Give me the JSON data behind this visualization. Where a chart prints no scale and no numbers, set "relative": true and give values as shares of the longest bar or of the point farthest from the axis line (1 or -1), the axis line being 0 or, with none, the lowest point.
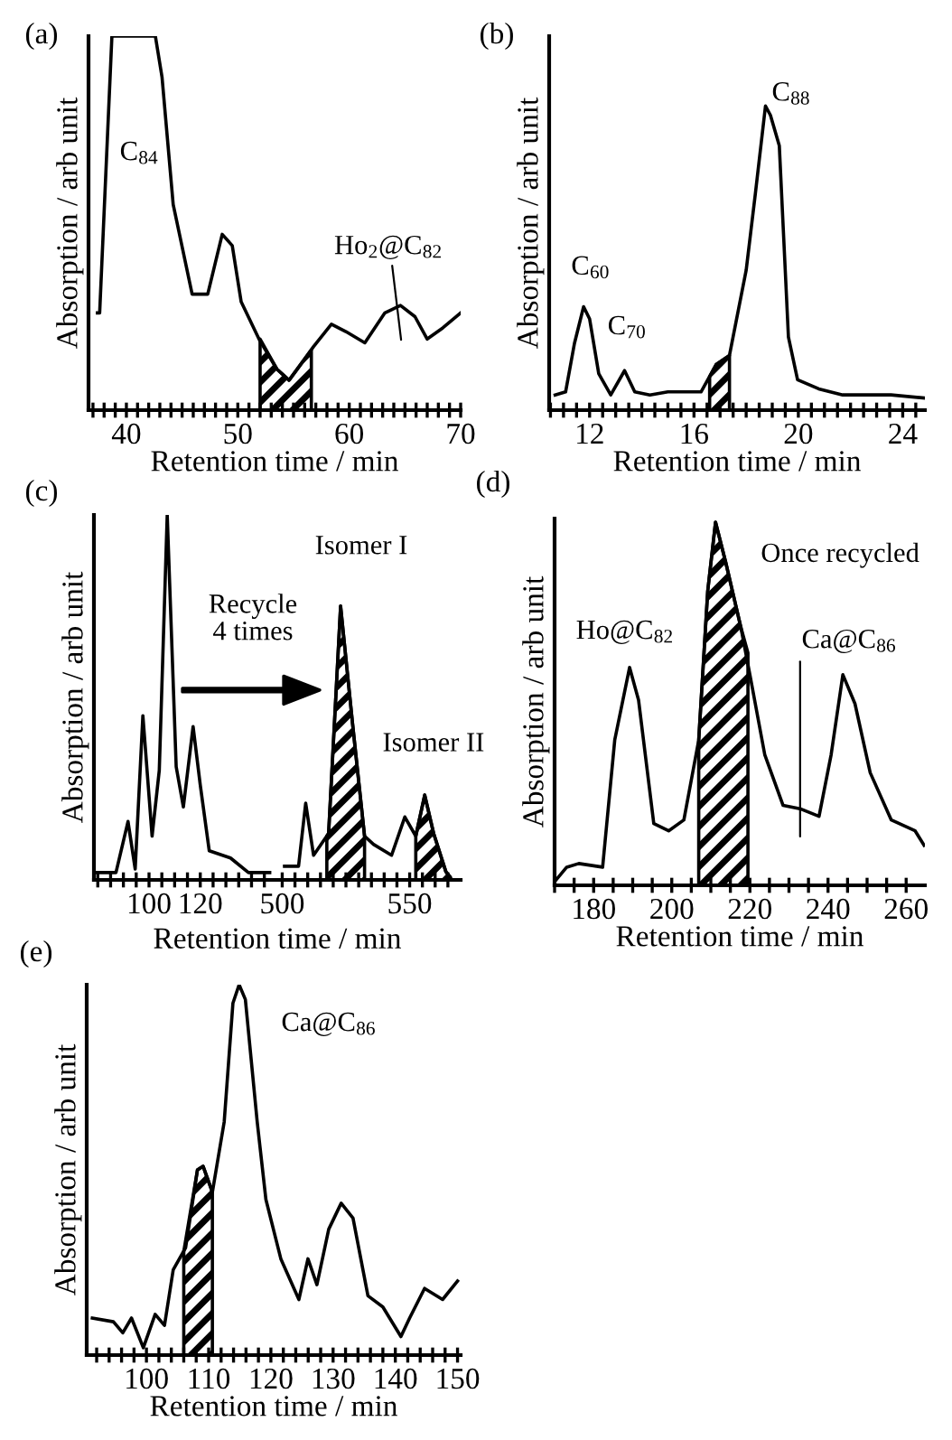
{
  "chart_data": [
    {
      "type": "line",
      "relative": true,
      "title": "(a)",
      "xlabel": "Retention time / min",
      "ylabel": "Absorption / arb unit",
      "x": [
        37.4,
        37.6,
        38.7,
        42.6,
        43.2,
        44.2,
        45.9,
        47.3,
        48.6,
        49.5,
        50.3,
        51.9,
        53.5,
        54.6,
        56.8,
        58.4,
        59.7,
        61.4,
        63.2,
        64.6,
        65.9,
        67.0,
        68.4,
        70
      ],
      "series": [
        {
          "color": "#000000",
          "values": [
            0.26,
            0.26,
            1,
            1,
            0.89,
            0.55,
            0.31,
            0.31,
            0.47,
            0.44,
            0.29,
            0.19,
            0.11,
            0.08,
            0.17,
            0.23,
            0.21,
            0.18,
            0.26,
            0.28,
            0.25,
            0.19,
            0.22,
            0.26
          ]
        },
        {
          "type": "area",
          "color": "#000000",
          "x": [
            52.0,
            53.5,
            54.6,
            56.6
          ],
          "values": [
            0.19,
            0.11,
            0.08,
            0.16
          ]
        }
      ],
      "xlim": [
        36.6,
        70
      ],
      "xticks": [
        {
          "value": 37,
          "label": null
        },
        {
          "value": 38,
          "label": null
        },
        {
          "value": 39,
          "label": null
        },
        40,
        {
          "value": 41,
          "label": null
        },
        {
          "value": 42,
          "label": null
        },
        {
          "value": 43,
          "label": null
        },
        {
          "value": 44,
          "label": null
        },
        {
          "value": 45,
          "label": null
        },
        {
          "value": 46,
          "label": null
        },
        {
          "value": 47,
          "label": null
        },
        {
          "value": 48,
          "label": null
        },
        {
          "value": 49,
          "label": null
        },
        50,
        {
          "value": 51,
          "label": null
        },
        {
          "value": 52,
          "label": null
        },
        {
          "value": 53,
          "label": null
        },
        {
          "value": 54,
          "label": null
        },
        {
          "value": 55,
          "label": null
        },
        {
          "value": 56,
          "label": null
        },
        {
          "value": 57,
          "label": null
        },
        {
          "value": 58,
          "label": null
        },
        {
          "value": 59,
          "label": null
        },
        60,
        {
          "value": 61,
          "label": null
        },
        {
          "value": 62,
          "label": null
        },
        {
          "value": 63,
          "label": null
        },
        {
          "value": 64,
          "label": null
        },
        {
          "value": 65,
          "label": null
        },
        {
          "value": 66,
          "label": null
        },
        {
          "value": 67,
          "label": null
        },
        {
          "value": 68,
          "label": null
        },
        {
          "value": 69,
          "label": null
        },
        70
      ],
      "annotations": [
        "C$_{84}$",
        "Ho$_{2}$@C$_{82}$"
      ]
    },
    {
      "type": "line",
      "relative": true,
      "title": "(b)",
      "xlabel": "Retention time / min",
      "ylabel": "Absorption / arb unit",
      "x": [
        10.68,
        11.08,
        11.42,
        11.77,
        12.0,
        12.35,
        12.81,
        13.34,
        13.73,
        14.31,
        15.0,
        15.7,
        16.27,
        16.85,
        17.36,
        18.0,
        18.35,
        18.74,
        18.93,
        19.27,
        19.62,
        19.97,
        20.78,
        21.7,
        23.55,
        24.82
      ],
      "series": [
        {
          "color": "#000000",
          "values": [
            0.05,
            0.06,
            0.22,
            0.34,
            0.3,
            0.12,
            0.05,
            0.13,
            0.06,
            0.05,
            0.06,
            0.06,
            0.06,
            0.15,
            0.18,
            0.46,
            0.71,
            1.0,
            0.97,
            0.87,
            0.24,
            0.1,
            0.07,
            0.05,
            0.05,
            0.04
          ]
        },
        {
          "type": "area",
          "color": "#000000",
          "x": [
            16.6,
            16.85,
            17.36
          ],
          "values": [
            0.11,
            0.15,
            0.18
          ]
        }
      ],
      "xlim": [
        10.45,
        24.85
      ],
      "xticks": [
        {
          "value": 10.5,
          "label": null
        },
        {
          "value": 11,
          "label": null
        },
        {
          "value": 11.5,
          "label": null
        },
        12,
        {
          "value": 12.5,
          "label": null
        },
        {
          "value": 13,
          "label": null
        },
        {
          "value": 13.5,
          "label": null
        },
        {
          "value": 14,
          "label": null
        },
        {
          "value": 14.5,
          "label": null
        },
        {
          "value": 15,
          "label": null
        },
        {
          "value": 15.5,
          "label": null
        },
        16,
        {
          "value": 16.5,
          "label": null
        },
        {
          "value": 17,
          "label": null
        },
        {
          "value": 17.5,
          "label": null
        },
        {
          "value": 18,
          "label": null
        },
        {
          "value": 18.5,
          "label": null
        },
        {
          "value": 19,
          "label": null
        },
        {
          "value": 19.5,
          "label": null
        },
        20,
        {
          "value": 20.5,
          "label": null
        },
        {
          "value": 21,
          "label": null
        },
        {
          "value": 21.5,
          "label": null
        },
        {
          "value": 22,
          "label": null
        },
        {
          "value": 22.5,
          "label": null
        },
        {
          "value": 23,
          "label": null
        },
        {
          "value": 23.5,
          "label": null
        },
        24,
        {
          "value": 24.5,
          "label": null
        }
      ],
      "annotations": [
        "C$_{60}$",
        "C$_{70}$",
        "C$_{88}$"
      ]
    },
    {
      "type": "line",
      "relative": true,
      "title": "(c)",
      "xlabel": "Retention time / min",
      "ylabel": "Absorption / arb unit",
      "x": [
        78.8,
        87.1,
        91.8,
        94.6,
        97.6,
        101.2,
        104.0,
        107.1,
        110.6,
        113.4,
        117.2,
        120.0,
        123.5,
        131.8,
        138.8,
        147.1
      ],
      "series": [
        {
          "color": "#000000",
          "values": [
            0.02,
            0.02,
            0.16,
            0.03,
            0.45,
            0.12,
            0.3,
            1.0,
            0.31,
            0.2,
            0.42,
            0.26,
            0.08,
            0.06,
            0.02,
            0.02
          ]
        }
      ],
      "xlim": [
        78.5,
        149
      ],
      "xticks": [
        {
          "value": 80,
          "label": null
        },
        {
          "value": 85,
          "label": null
        },
        {
          "value": 90,
          "label": null
        },
        {
          "value": 95,
          "label": null
        },
        100,
        {
          "value": 105,
          "label": null
        },
        {
          "value": 110,
          "label": null
        },
        {
          "value": 115,
          "label": null
        },
        120,
        {
          "value": 125,
          "label": null
        },
        {
          "value": 130,
          "label": null
        },
        {
          "value": 135,
          "label": null
        },
        {
          "value": 140,
          "label": null
        },
        {
          "value": 145,
          "label": null
        }
      ],
      "annotations": [
        "Recycle\n4 times"
      ]
    },
    {
      "type": "line",
      "relative": true,
      "x": [
        500.9,
        506.4,
        509.2,
        512.3,
        518.2,
        522.9,
        527.6,
        532.3,
        535.8,
        542.9,
        548.1,
        552.4,
        555.9,
        559.4,
        564.2,
        566.5
      ],
      "series": [
        {
          "color": "#000000",
          "values": [
            0.05,
            0.05,
            0.28,
            0.09,
            0.17,
            1.0,
            0.57,
            0.16,
            0.13,
            0.09,
            0.23,
            0.16,
            0.31,
            0.17,
            0.03,
            0
          ]
        },
        {
          "type": "area",
          "color": "#000000",
          "x": [
            517.5,
            518.2,
            522.9,
            527.6,
            532.3
          ],
          "values": [
            0.16,
            0.17,
            1.0,
            0.57,
            0.16
          ]
        },
        {
          "type": "area",
          "color": "#000000",
          "x": [
            552.4,
            555.9,
            559.4,
            564.2,
            566.0
          ],
          "values": [
            0.16,
            0.31,
            0.17,
            0.03,
            0.01
          ]
        }
      ],
      "xlim": [
        497,
        570
      ],
      "xticks": [
        500,
        {
          "value": 505,
          "label": null
        },
        {
          "value": 510,
          "label": null
        },
        {
          "value": 515,
          "label": null
        },
        {
          "value": 520,
          "label": null
        },
        {
          "value": 525,
          "label": null
        },
        {
          "value": 530,
          "label": null
        },
        {
          "value": 535,
          "label": null
        },
        {
          "value": 540,
          "label": null
        },
        {
          "value": 545,
          "label": null
        },
        550,
        {
          "value": 555,
          "label": null
        },
        {
          "value": 560,
          "label": null
        },
        {
          "value": 565,
          "label": null
        }
      ],
      "annotations": [
        "Isomer I",
        "Isomer II"
      ]
    },
    {
      "type": "line",
      "relative": true,
      "title": "(d)",
      "xlabel": "Retention time / min",
      "ylabel": "Absorption / arb unit",
      "x": [
        170,
        173.1,
        176.2,
        182.3,
        185.4,
        189.2,
        191.5,
        195.4,
        199.2,
        203.1,
        206.9,
        209.2,
        211.2,
        213.8,
        217.7,
        220.0,
        223.8,
        228.5,
        233.1,
        237.7,
        240.8,
        243.8,
        246.9,
        250.8,
        256.2,
        262.3,
        264.6
      ],
      "series": [
        {
          "color": "#000000",
          "values": [
            0.01,
            0.05,
            0.06,
            0.05,
            0.4,
            0.6,
            0.51,
            0.17,
            0.15,
            0.18,
            0.4,
            0.81,
            1.0,
            0.89,
            0.71,
            0.58,
            0.36,
            0.22,
            0.21,
            0.19,
            0.36,
            0.58,
            0.5,
            0.31,
            0.18,
            0.15,
            0.11
          ]
        },
        {
          "type": "area",
          "color": "#000000",
          "x": [
            206.9,
            209.2,
            211.2,
            213.8,
            217.7,
            219.5
          ],
          "values": [
            0.4,
            0.81,
            1.0,
            0.89,
            0.71,
            0.64
          ]
        }
      ],
      "xlim": [
        170,
        264.8
      ],
      "xticks": [
        {
          "value": 170,
          "label": null
        },
        {
          "value": 175,
          "label": null
        },
        180,
        {
          "value": 185,
          "label": null
        },
        {
          "value": 190,
          "label": null
        },
        {
          "value": 195,
          "label": null
        },
        200,
        {
          "value": 205,
          "label": null
        },
        {
          "value": 210,
          "label": null
        },
        {
          "value": 215,
          "label": null
        },
        220,
        {
          "value": 225,
          "label": null
        },
        {
          "value": 230,
          "label": null
        },
        {
          "value": 235,
          "label": null
        },
        240,
        {
          "value": 245,
          "label": null
        },
        {
          "value": 250,
          "label": null
        },
        {
          "value": 255,
          "label": null
        },
        260
      ],
      "annotations": [
        "Ho@C$_{82}$",
        "Once recycled",
        "Ca@C$_{86}$"
      ]
    },
    {
      "type": "line",
      "relative": true,
      "title": "(e)",
      "xlabel": "Retention time / min",
      "ylabel": "Absorption / arb unit",
      "x": [
        91.3,
        94.7,
        96.2,
        97.6,
        99.5,
        101.4,
        102.9,
        104.3,
        106.3,
        108.2,
        109.1,
        110.6,
        112.5,
        113.9,
        114.9,
        115.9,
        117.8,
        119.2,
        121.6,
        124.5,
        125.96,
        127.4,
        129.3,
        131.3,
        133.2,
        135.6,
        138.0,
        140.9,
        142.3,
        144.7,
        147.6,
        150
      ],
      "series": [
        {
          "color": "#000000",
          "values": [
            0.1,
            0.09,
            0.06,
            0.1,
            0.02,
            0.11,
            0.08,
            0.23,
            0.29,
            0.5,
            0.51,
            0.44,
            0.63,
            0.95,
            1.0,
            0.96,
            0.63,
            0.42,
            0.26,
            0.15,
            0.26,
            0.19,
            0.34,
            0.41,
            0.37,
            0.16,
            0.13,
            0.05,
            0.1,
            0.18,
            0.15,
            0.2
          ]
        },
        {
          "type": "area",
          "color": "#000000",
          "x": [
            106.0,
            108.2,
            109.1,
            110.6
          ],
          "values": [
            0.28,
            0.5,
            0.51,
            0.44
          ]
        }
      ],
      "xlim": [
        90.4,
        150.5
      ],
      "xticks": [
        {
          "value": 92,
          "label": null
        },
        {
          "value": 94,
          "label": null
        },
        {
          "value": 96,
          "label": null
        },
        {
          "value": 98,
          "label": null
        },
        100,
        {
          "value": 102,
          "label": null
        },
        {
          "value": 104,
          "label": null
        },
        {
          "value": 106,
          "label": null
        },
        {
          "value": 108,
          "label": null
        },
        110,
        {
          "value": 112,
          "label": null
        },
        {
          "value": 114,
          "label": null
        },
        {
          "value": 116,
          "label": null
        },
        {
          "value": 118,
          "label": null
        },
        120,
        {
          "value": 122,
          "label": null
        },
        {
          "value": 124,
          "label": null
        },
        {
          "value": 126,
          "label": null
        },
        {
          "value": 128,
          "label": null
        },
        130,
        {
          "value": 132,
          "label": null
        },
        {
          "value": 134,
          "label": null
        },
        {
          "value": 136,
          "label": null
        },
        {
          "value": 138,
          "label": null
        },
        140,
        {
          "value": 142,
          "label": null
        },
        {
          "value": 144,
          "label": null
        },
        {
          "value": 146,
          "label": null
        },
        {
          "value": 148,
          "label": null
        },
        150
      ],
      "annotations": [
        "Ca@C$_{86}$"
      ]
    }
  ]
}
